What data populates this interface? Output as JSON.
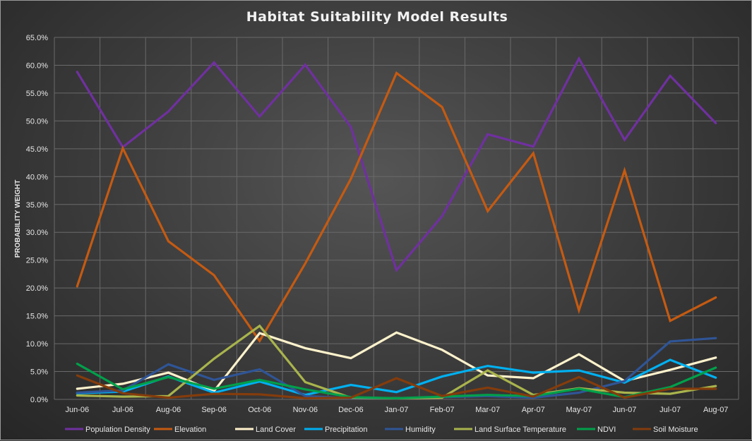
{
  "chart_data": {
    "type": "line",
    "title": "Habitat Suitability Model Results",
    "xlabel": "",
    "ylabel": "PROBABILITY WEIGHT",
    "ylim": [
      0,
      65
    ],
    "yticks": [
      "0.0%",
      "5.0%",
      "10.0%",
      "15.0%",
      "20.0%",
      "25.0%",
      "30.0%",
      "35.0%",
      "40.0%",
      "45.0%",
      "50.0%",
      "55.0%",
      "60.0%",
      "65.0%"
    ],
    "grid": true,
    "legend_position": "bottom",
    "categories": [
      "Jun-06",
      "Jul-06",
      "Aug-06",
      "Sep-06",
      "Oct-06",
      "Nov-06",
      "Dec-06",
      "Jan-07",
      "Feb-07",
      "Mar-07",
      "Apr-07",
      "May-07",
      "Jun-07",
      "Jul-07",
      "Aug-07"
    ],
    "series": [
      {
        "name": "Population Density",
        "color": "#7030a0",
        "values": [
          58.8,
          45.3,
          51.7,
          60.5,
          50.8,
          60.1,
          48.9,
          23.2,
          32.9,
          47.6,
          45.4,
          61.2,
          46.6,
          58.1,
          49.6
        ]
      },
      {
        "name": "Elevation",
        "color": "#c55a11",
        "values": [
          20.3,
          45.1,
          28.4,
          22.3,
          10.5,
          24.4,
          39.6,
          58.6,
          52.5,
          33.8,
          44.2,
          16.0,
          41.1,
          14.1,
          18.3
        ]
      },
      {
        "name": "Land Cover",
        "color": "#fff2cc",
        "values": [
          1.9,
          2.8,
          4.8,
          1.5,
          11.9,
          9.2,
          7.4,
          12.0,
          8.9,
          4.3,
          3.8,
          8.1,
          3.3,
          5.3,
          7.5
        ]
      },
      {
        "name": "Precipitation",
        "color": "#00b0f0",
        "values": [
          1.1,
          1.4,
          4.1,
          1.2,
          3.2,
          0.8,
          2.6,
          1.3,
          4.1,
          6.0,
          4.8,
          5.2,
          3.0,
          7.1,
          3.9
        ]
      },
      {
        "name": "Humidity",
        "color": "#2f5597",
        "values": [
          1.2,
          1.6,
          6.3,
          3.5,
          5.4,
          0.6,
          0.2,
          0.2,
          0.4,
          0.6,
          0.3,
          1.2,
          3.3,
          10.4,
          11.0
        ]
      },
      {
        "name": "Land Surface Temperature",
        "color": "#a9b44c",
        "values": [
          0.7,
          0.5,
          0.6,
          7.3,
          13.2,
          3.1,
          0.3,
          0.2,
          0.3,
          5.2,
          0.8,
          2.0,
          1.2,
          1.0,
          2.4
        ]
      },
      {
        "name": "NDVI",
        "color": "#00a04b",
        "values": [
          6.4,
          1.8,
          4.0,
          1.9,
          3.5,
          1.8,
          0.4,
          0.2,
          0.5,
          0.8,
          0.6,
          1.9,
          0.4,
          2.2,
          5.7
        ]
      },
      {
        "name": "Soil Moisture",
        "color": "#843c0c",
        "values": [
          4.3,
          1.1,
          0.3,
          1.0,
          0.9,
          0.2,
          0.3,
          3.8,
          0.6,
          2.1,
          0.5,
          4.0,
          0.3,
          1.9,
          1.9
        ]
      }
    ]
  }
}
